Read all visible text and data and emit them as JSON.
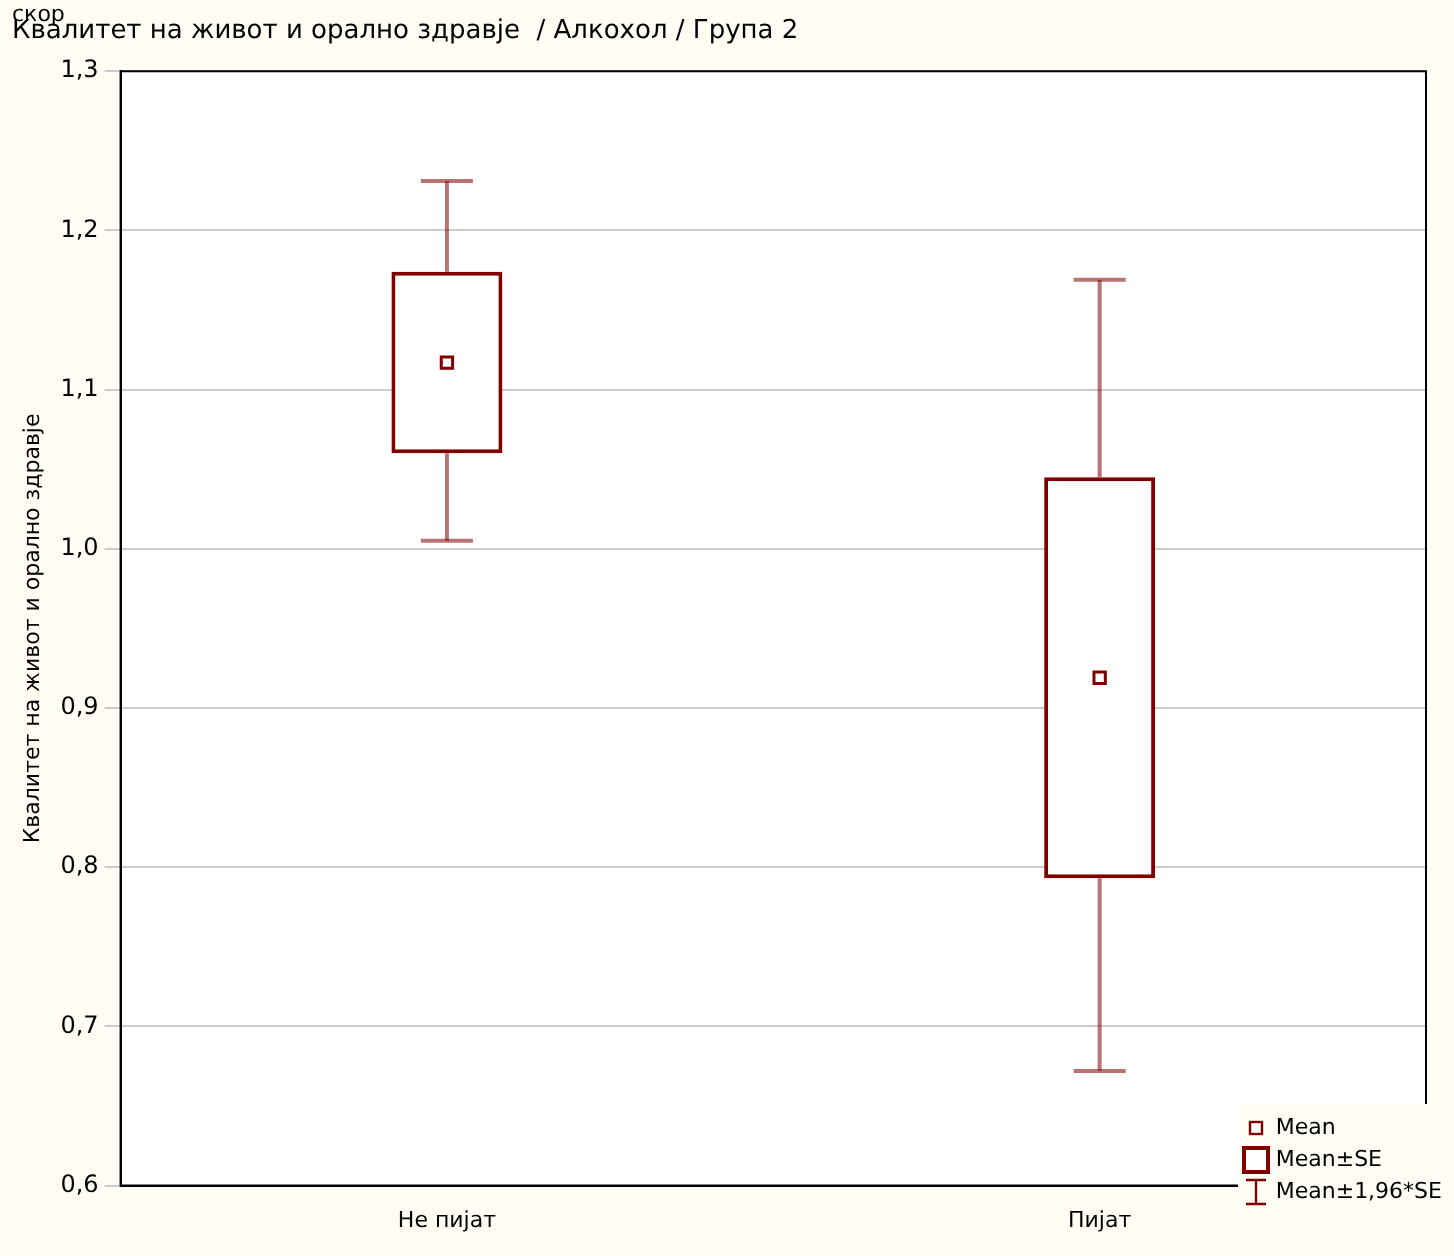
{
  "chart_data": {
    "type": "box",
    "title": "Квалитет на живот и орално здравје  / Алкохол / Група 2",
    "ylabel": "Квалитет на живот и орално здравје",
    "categories": [
      "Не пијат",
      "Пијат"
    ],
    "color": "#800000",
    "marker": "square",
    "boxes": [
      {
        "low": 1.005,
        "q1": 1.06,
        "q3": 1.174,
        "high": 1.231,
        "mean": 1.117
      },
      {
        "low": 0.672,
        "q1": 0.793,
        "q3": 1.045,
        "high": 1.169,
        "mean": 0.919
      }
    ],
    "ylim": [
      0.6,
      1.3
    ],
    "yticks": [
      {
        "value": 0.6,
        "label": "0,6"
      },
      {
        "value": 0.7,
        "label": "0,7"
      },
      {
        "value": 0.8,
        "label": "0,8"
      },
      {
        "value": 0.9,
        "label": "0,9"
      },
      {
        "value": 1.0,
        "label": "1,0"
      },
      {
        "value": 1.1,
        "label": "1,1"
      },
      {
        "value": 1.2,
        "label": "1,2"
      },
      {
        "value": 1.3,
        "label": "1,3"
      }
    ],
    "grid": "y",
    "annotations": [
      "скор",
      "Mean",
      "Mean±SE",
      "Mean±1,96*SE"
    ]
  }
}
